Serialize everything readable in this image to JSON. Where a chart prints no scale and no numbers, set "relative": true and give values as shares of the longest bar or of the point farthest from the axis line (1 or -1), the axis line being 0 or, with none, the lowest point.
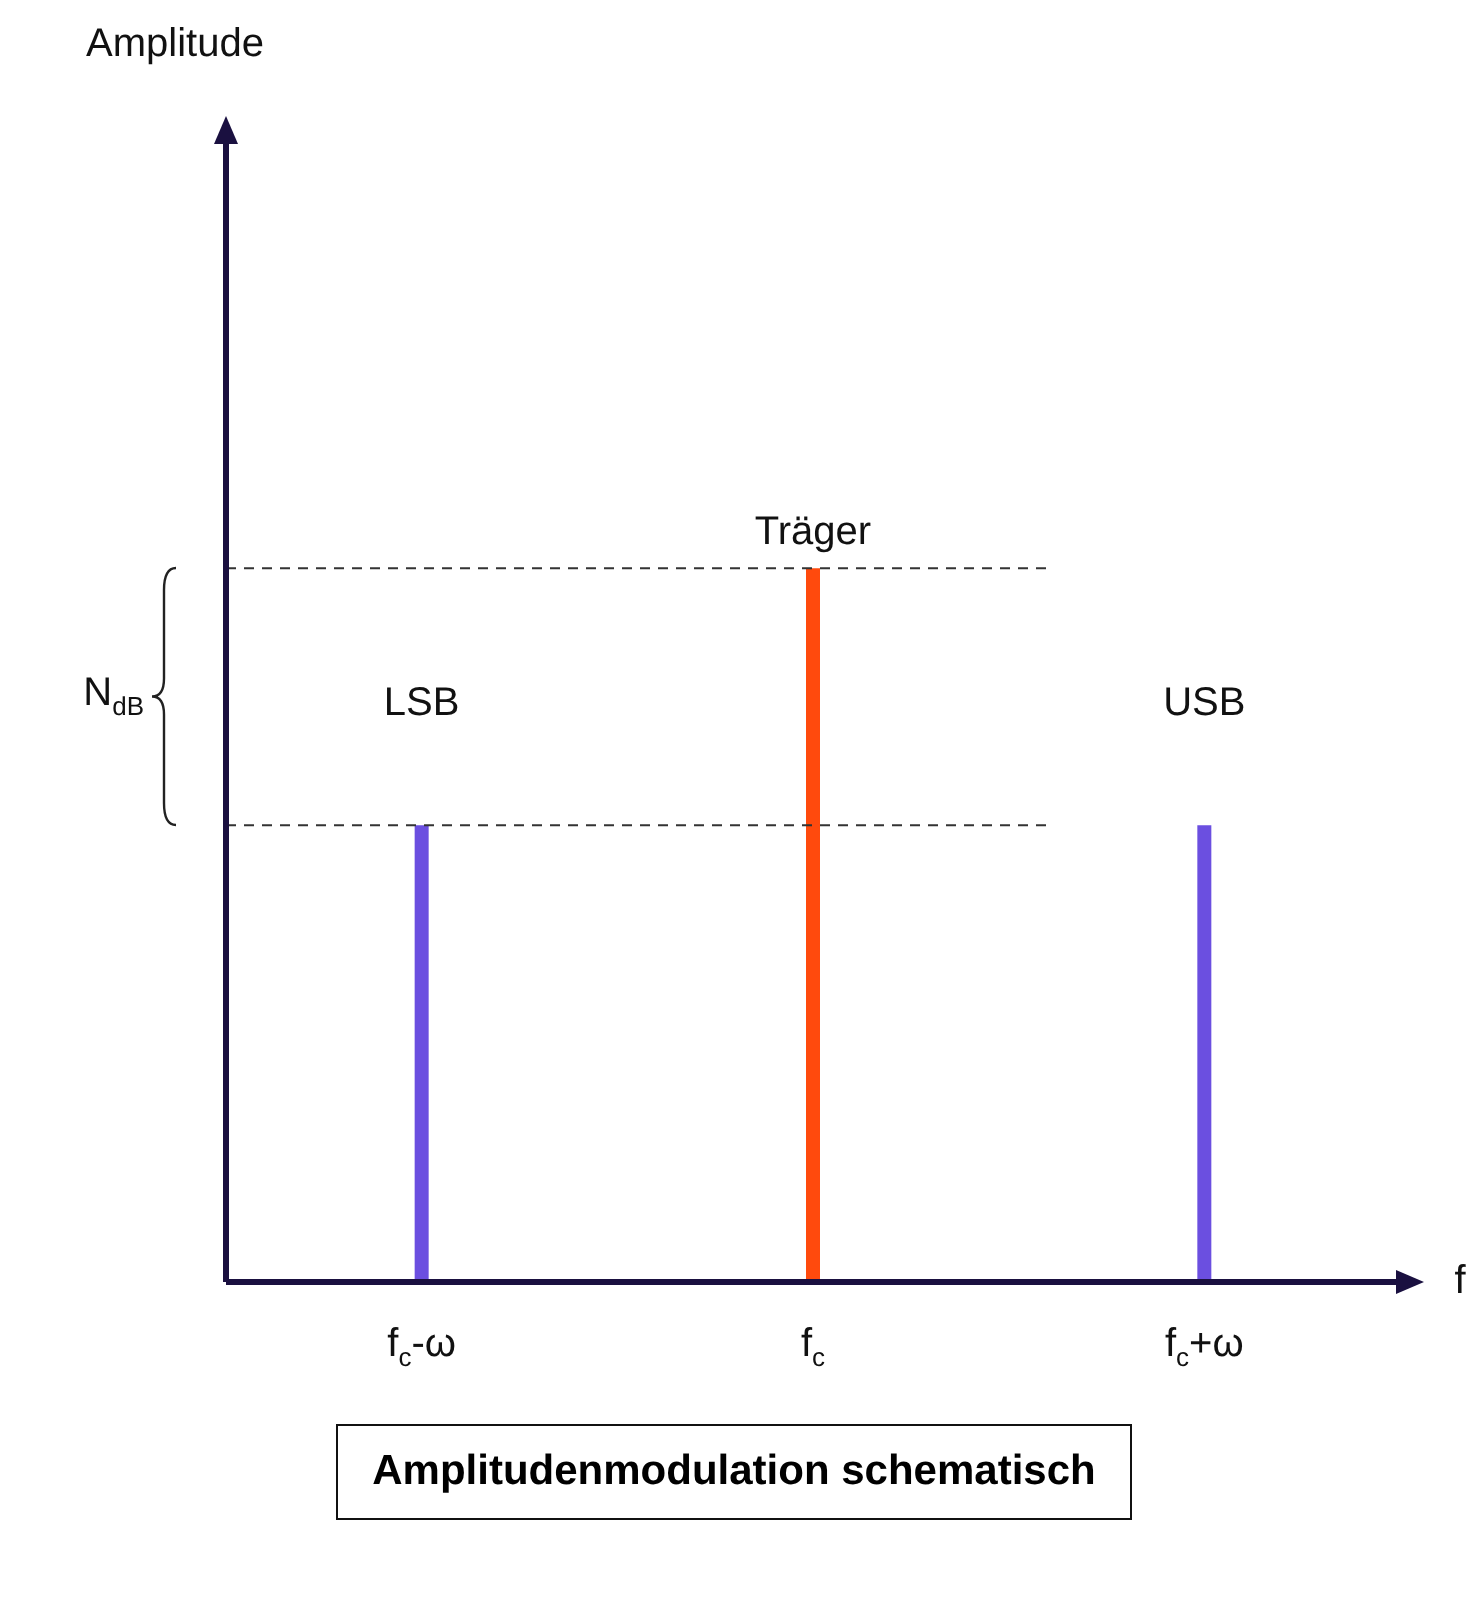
{
  "chart_data": {
    "type": "bar",
    "relative": true,
    "categories": [
      "f$_{c}$-ω",
      "f$_{c}$",
      "f$_{c}$+ω"
    ],
    "values": [
      0.64,
      1,
      0.64
    ],
    "colors": [
      "#6b4fe0",
      "#ff4a0d",
      "#6b4fe0"
    ],
    "xlabel": "f",
    "title": "Amplitudenmodulation schematisch",
    "ref_lines": [
      {
        "axis": "y",
        "value": 1,
        "color": "#333333",
        "line_style": "dashed"
      },
      {
        "axis": "y",
        "value": 0.64,
        "color": "#333333",
        "line_style": "dashed"
      }
    ],
    "annotations": [
      {
        "text": "Träger",
        "x": "f$_{c}$",
        "y": 1
      },
      {
        "text": "LSB",
        "x": "f$_{c}$-ω",
        "y": 0.64
      },
      {
        "text": "USB",
        "x": "f$_{c}$+ω",
        "y": 0.64
      },
      "Amplitude",
      "N$_{dB}$"
    ],
    "grid": false,
    "legend": false
  }
}
